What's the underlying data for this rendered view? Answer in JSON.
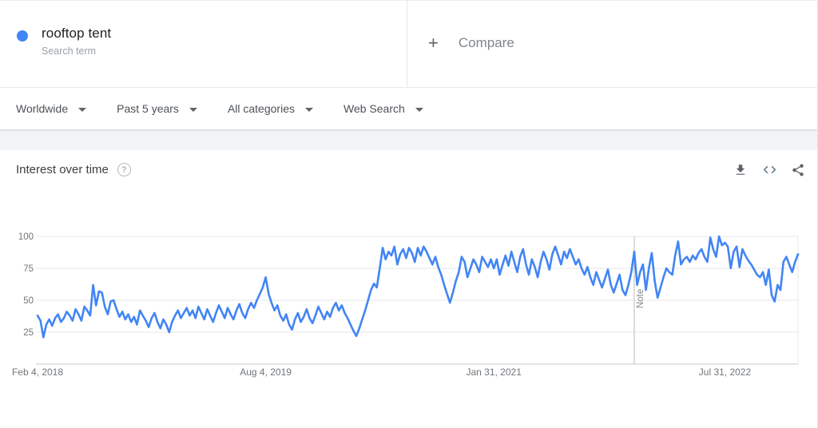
{
  "term_card": {
    "term": "rooftop tent",
    "term_type": "Search term",
    "dot_color": "#4285f4",
    "plus_icon": "+",
    "compare_label": "Compare"
  },
  "filters": {
    "region": "Worldwide",
    "time": "Past 5 years",
    "category": "All categories",
    "search_type": "Web Search"
  },
  "widget": {
    "title": "Interest over time",
    "help_icon": "?",
    "icons": [
      "download-icon",
      "embed-icon",
      "share-icon"
    ]
  },
  "chart_data": {
    "type": "line",
    "title": "Interest over time",
    "series_name": "rooftop tent",
    "line_color": "#4285f4",
    "grid": true,
    "ylim": [
      0,
      100
    ],
    "yticks": [
      25,
      50,
      75,
      100
    ],
    "xticks": [
      {
        "label": "Feb 4, 2018",
        "week": 0
      },
      {
        "label": "Aug 4, 2019",
        "week": 78
      },
      {
        "label": "Jan 31, 2021",
        "week": 156
      },
      {
        "label": "Jul 31, 2022",
        "week": 235
      }
    ],
    "note": {
      "label": "Note",
      "week": 204
    },
    "x_unit": "weeks since Feb 4, 2018",
    "values": [
      38,
      34,
      21,
      31,
      35,
      30,
      36,
      39,
      33,
      36,
      41,
      38,
      34,
      43,
      39,
      34,
      45,
      42,
      38,
      62,
      46,
      57,
      56,
      45,
      39,
      49,
      50,
      43,
      37,
      41,
      35,
      39,
      33,
      37,
      31,
      42,
      38,
      34,
      29,
      36,
      40,
      33,
      28,
      35,
      31,
      25,
      33,
      38,
      42,
      36,
      40,
      44,
      38,
      42,
      36,
      45,
      40,
      35,
      43,
      38,
      33,
      40,
      46,
      41,
      36,
      44,
      39,
      35,
      42,
      47,
      40,
      36,
      43,
      48,
      44,
      50,
      55,
      60,
      68,
      55,
      48,
      42,
      46,
      38,
      34,
      39,
      31,
      27,
      35,
      40,
      33,
      37,
      43,
      36,
      32,
      38,
      45,
      40,
      35,
      41,
      37,
      44,
      48,
      42,
      46,
      40,
      36,
      31,
      26,
      22,
      28,
      35,
      42,
      50,
      58,
      63,
      60,
      75,
      91,
      82,
      88,
      85,
      92,
      78,
      86,
      90,
      83,
      91,
      87,
      80,
      91,
      85,
      92,
      88,
      83,
      78,
      84,
      76,
      70,
      62,
      55,
      48,
      56,
      65,
      72,
      84,
      80,
      68,
      75,
      82,
      78,
      72,
      84,
      80,
      76,
      82,
      75,
      82,
      70,
      78,
      85,
      77,
      88,
      80,
      72,
      84,
      90,
      78,
      70,
      82,
      76,
      68,
      80,
      88,
      82,
      74,
      86,
      92,
      85,
      78,
      88,
      83,
      90,
      84,
      78,
      82,
      75,
      70,
      76,
      68,
      62,
      72,
      66,
      60,
      67,
      74,
      62,
      56,
      63,
      70,
      58,
      54,
      62,
      72,
      88,
      62,
      72,
      78,
      58,
      75,
      87,
      65,
      52,
      60,
      68,
      75,
      72,
      70,
      85,
      96,
      78,
      82,
      84,
      80,
      85,
      82,
      87,
      90,
      84,
      80,
      99,
      90,
      84,
      100,
      93,
      95,
      92,
      75,
      88,
      92,
      76,
      90,
      85,
      81,
      78,
      74,
      70,
      68,
      72,
      62,
      74,
      54,
      49,
      62,
      58,
      80,
      84,
      78,
      72,
      80,
      86
    ]
  }
}
